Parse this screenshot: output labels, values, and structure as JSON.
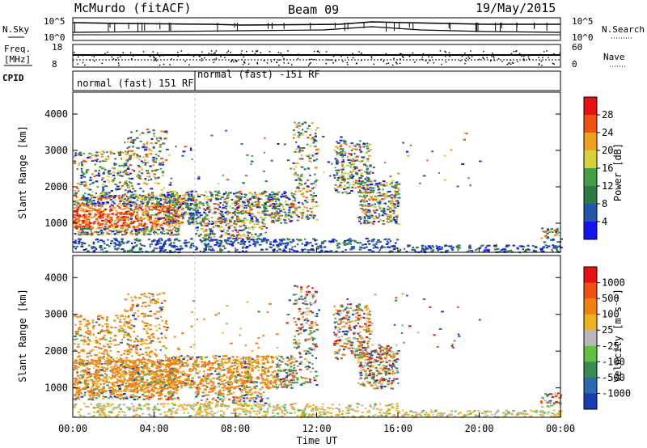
{
  "header": {
    "station": "McMurdo (fitACF)",
    "beam": "Beam 09",
    "date": "19/May/2015"
  },
  "strips": {
    "nsky_label": "N.Sky",
    "nsky_ticks": [
      "10^5",
      "10^0"
    ],
    "nsearch_label": "N.Search",
    "nsearch_ticks": [
      "10^5",
      "10^0"
    ],
    "freq_label": "Freq.",
    "freq_unit": "[MHz]",
    "freq_ticks": [
      "18",
      "8"
    ],
    "nave_label": "Nave",
    "nave_ticks": [
      "60",
      "0"
    ],
    "cpid_label": "CPID",
    "cpid_segments": [
      "normal (fast) 151 RF",
      "normal (fast) -151 RF"
    ]
  },
  "chart_data": [
    {
      "type": "heatmap",
      "title": "",
      "ylabel": "Slant Range [km]",
      "xlabel": "",
      "x_range": [
        "00:00",
        "24:00"
      ],
      "y_ticks": [
        1000,
        2000,
        3000,
        4000
      ],
      "ylim": [
        200,
        4600
      ],
      "colorbar_label": "Power [dB]",
      "colorbar_ticks": [
        "4",
        "8",
        "12",
        "16",
        "20",
        "24",
        "28"
      ],
      "colors": [
        "#1414f0",
        "#2456aa",
        "#2c7a46",
        "#44a044",
        "#d8d03c",
        "#f0a020",
        "#f05010",
        "#e81010"
      ]
    },
    {
      "type": "heatmap",
      "title": "",
      "ylabel": "Slant Range [km]",
      "xlabel": "Time UT",
      "x_ticks": [
        "00:00",
        "04:00",
        "08:00",
        "12:00",
        "16:00",
        "20:00",
        "00:00"
      ],
      "y_ticks": [
        1000,
        2000,
        3000,
        4000
      ],
      "ylim": [
        200,
        4600
      ],
      "colorbar_label": "Velocity [m s⁻¹]",
      "colorbar_ticks": [
        "1000",
        "500",
        "100",
        "25",
        "-25",
        "-100",
        "-500",
        "-1000"
      ],
      "colors": [
        "#1a3cb0",
        "#2a6ab0",
        "#3a8a54",
        "#60c040",
        "#b8b8b8",
        "#f0b020",
        "#f08010",
        "#f05010",
        "#e81010"
      ]
    }
  ]
}
